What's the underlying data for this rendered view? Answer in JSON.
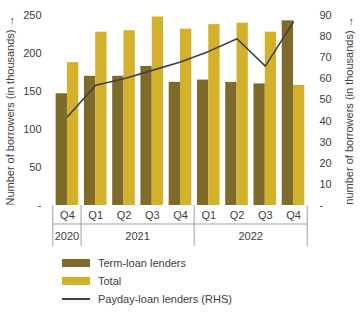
{
  "chart_data": {
    "type": "bar",
    "categories": [
      "Q4",
      "Q1",
      "Q2",
      "Q3",
      "Q4",
      "Q1",
      "Q2",
      "Q3",
      "Q4"
    ],
    "x_groups": [
      {
        "label": "2020",
        "count": 1
      },
      {
        "label": "2021",
        "count": 4
      },
      {
        "label": "2022",
        "count": 4
      }
    ],
    "y_label": "Number of borrowers (in thousands)",
    "y2_label": "number of borrowers (in thousands)",
    "ylim": [
      0,
      250
    ],
    "yticks": [
      {
        "value": 0,
        "label": "-"
      },
      50,
      100,
      150,
      200,
      250
    ],
    "y2lim": [
      0,
      90
    ],
    "y2ticks": [
      {
        "value": 0,
        "label": "-"
      },
      10,
      20,
      30,
      40,
      50,
      60,
      70,
      80,
      90
    ],
    "legend": "bottom",
    "series": [
      {
        "name": "Term-loan lenders",
        "type": "bar",
        "color": "#7e6b2c",
        "values": [
          147,
          170,
          170,
          183,
          162,
          165,
          162,
          160,
          243
        ]
      },
      {
        "name": "Total",
        "type": "bar",
        "color": "#d4b12b",
        "values": [
          188,
          228,
          230,
          248,
          232,
          238,
          240,
          228,
          158
        ]
      },
      {
        "name": "Payday-loan lenders (RHS)",
        "type": "line",
        "axis": "y2",
        "color": "#404040",
        "values": [
          42,
          57,
          60,
          64,
          68,
          73,
          79,
          66,
          87
        ]
      }
    ]
  }
}
